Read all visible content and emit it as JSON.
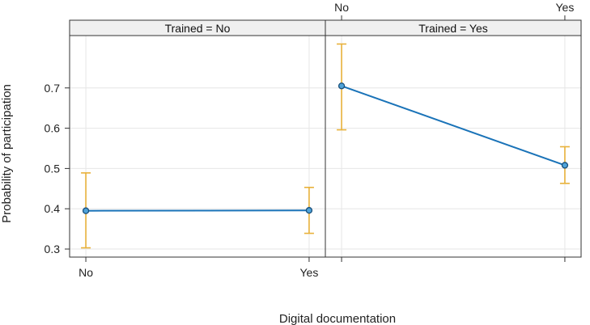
{
  "chart_data": {
    "type": "line",
    "ylabel": "Probability of participation",
    "xlabel": "Digital documentation",
    "categories": [
      "No",
      "Yes"
    ],
    "ylim": [
      0.28,
      0.83
    ],
    "yticks": [
      0.3,
      0.4,
      0.5,
      0.6,
      0.7
    ],
    "y_tick_labels": [
      "0.3",
      "0.4",
      "0.5",
      "0.6",
      "0.7"
    ],
    "grid": true,
    "line_color": "#1a73b8",
    "errorbar_color": "#e8b13a",
    "panels": [
      {
        "strip": "Trained = No",
        "x_labels_position": "bottom",
        "points": [
          {
            "x": "No",
            "y": 0.395,
            "lower": 0.303,
            "upper": 0.489
          },
          {
            "x": "Yes",
            "y": 0.396,
            "lower": 0.339,
            "upper": 0.453
          }
        ]
      },
      {
        "strip": "Trained = Yes",
        "x_labels_position": "top",
        "points": [
          {
            "x": "No",
            "y": 0.705,
            "lower": 0.596,
            "upper": 0.809
          },
          {
            "x": "Yes",
            "y": 0.508,
            "lower": 0.463,
            "upper": 0.554
          }
        ]
      }
    ]
  }
}
